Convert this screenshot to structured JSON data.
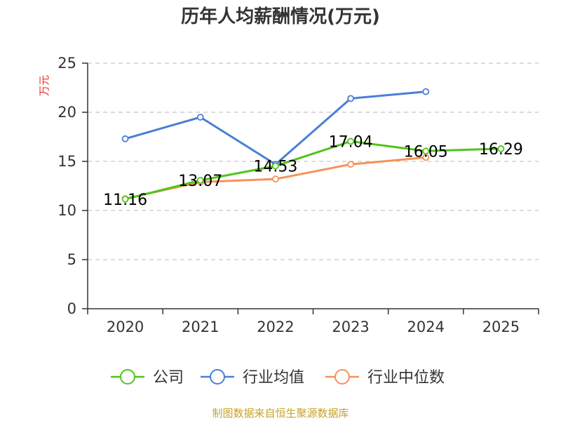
{
  "chart_data": {
    "type": "line",
    "title": "历年人均薪酬情况(万元)",
    "ylabel": "万元",
    "xlabel": "",
    "categories": [
      "2020",
      "2021",
      "2022",
      "2023",
      "2024",
      "2025"
    ],
    "ylim": [
      0,
      25
    ],
    "yticks": [
      0,
      5,
      10,
      15,
      20,
      25
    ],
    "grid": true,
    "legend_position": "bottom",
    "series": [
      {
        "name": "公司",
        "color": "#52c41a",
        "values": [
          11.16,
          13.07,
          14.53,
          17.04,
          16.05,
          16.29
        ],
        "labels": [
          "11.16",
          "13.07",
          "14.53",
          "17.04",
          "16.05",
          "16.29"
        ]
      },
      {
        "name": "行业均值",
        "color": "#4a7fd6",
        "values": [
          17.3,
          19.5,
          14.7,
          21.4,
          22.1,
          null
        ]
      },
      {
        "name": "行业中位数",
        "color": "#f5925a",
        "values": [
          11.2,
          12.9,
          13.2,
          14.7,
          15.4,
          null
        ]
      }
    ]
  },
  "colors": {
    "ylabel": "#e0342b",
    "source": "#c9a227",
    "grid": "#c8c8c8",
    "axis": "#333333"
  },
  "footer": {
    "source": "制图数据来自恒生聚源数据库"
  }
}
